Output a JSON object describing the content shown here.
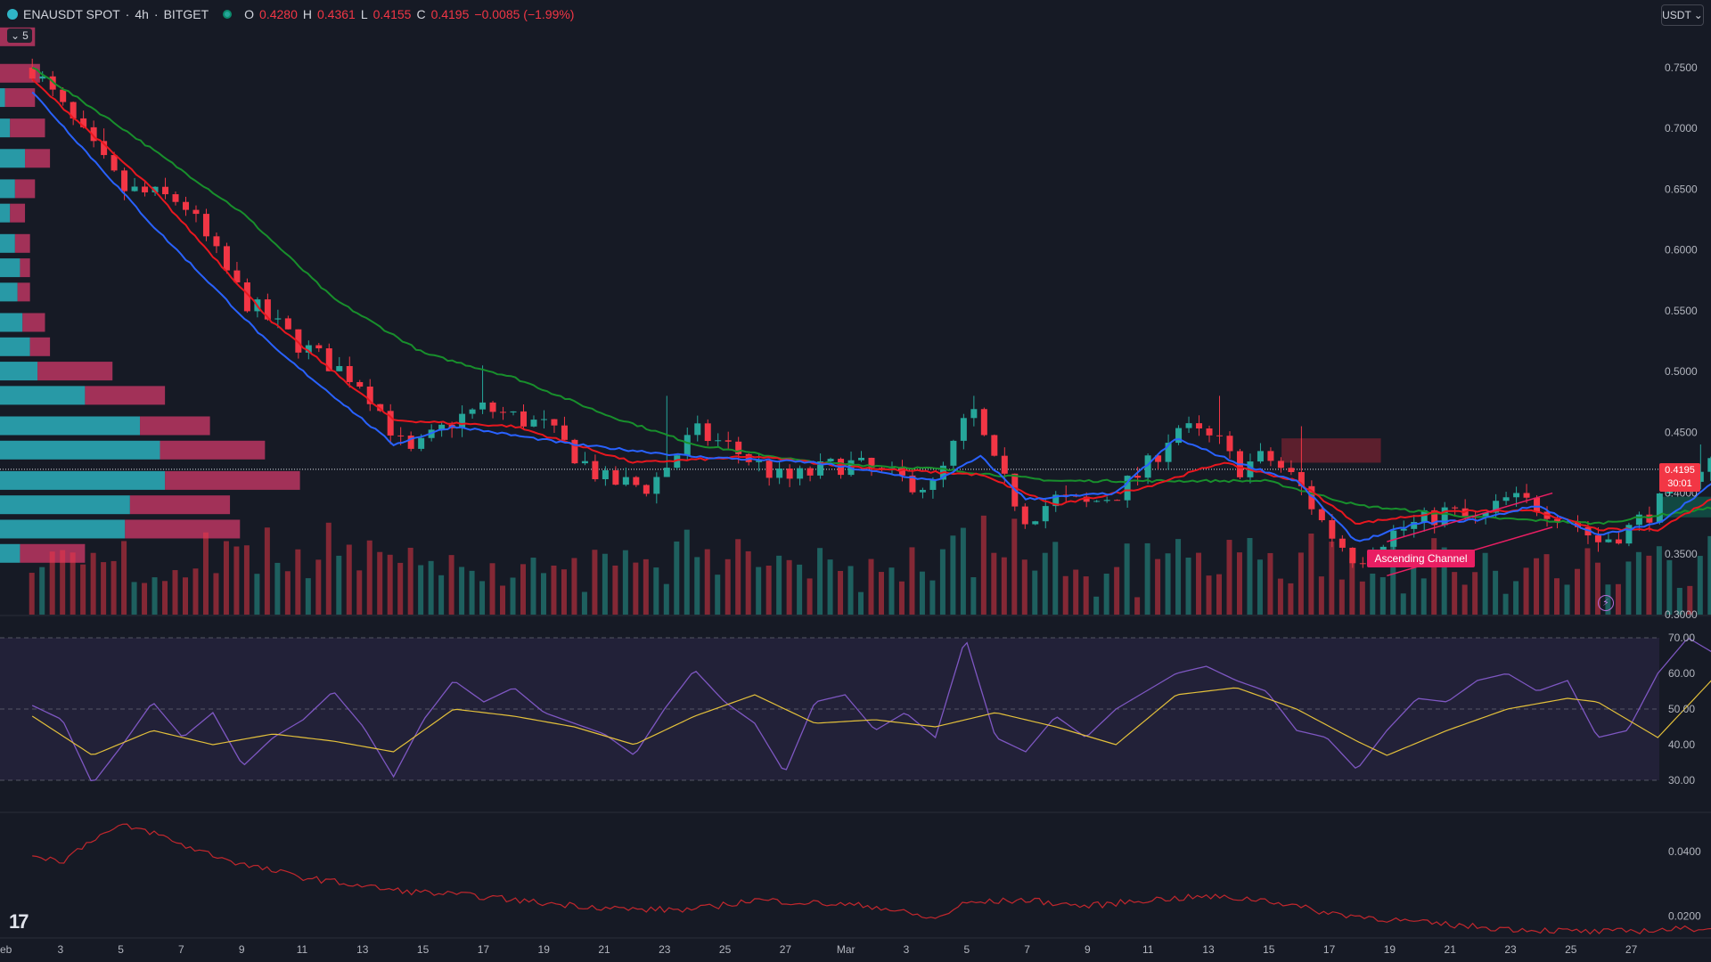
{
  "header": {
    "symbol": "ENAUSDT SPOT",
    "sep1": "·",
    "interval": "4h",
    "sep2": "·",
    "exchange": "BITGET",
    "open_key": "O",
    "open": "0.4280",
    "high_key": "H",
    "high": "0.4361",
    "low_key": "L",
    "low": "0.4155",
    "close_key": "C",
    "close": "0.4195",
    "change": "−0.0085 (−1.99%)"
  },
  "indicators_toggle": {
    "count": "5"
  },
  "currency": {
    "label": "USDT"
  },
  "current_price": {
    "value": "0.4195",
    "countdown": "30:01"
  },
  "pattern_label": "Ascending Channel",
  "colors": {
    "background": "#161a25",
    "up": "#26a69a",
    "down": "#f23645",
    "ema_fast": "#2962ff",
    "ema_mid": "#e8171f",
    "ema_slow": "#188f2c",
    "rsi": "#7e57c2",
    "rsi_ma": "#e3c03b",
    "vp_up": "#2bb0bd",
    "vp_down": "#d23a6a"
  },
  "chart_data": [
    {
      "type": "candlestick",
      "panel": "price",
      "ylim": [
        0.3,
        0.78
      ],
      "price_ticks": [
        "0.7500",
        "0.7000",
        "0.6500",
        "0.6000",
        "0.5500",
        "0.5000",
        "0.4500",
        "0.4000",
        "0.3500",
        "0.3000"
      ],
      "x_ticks": [
        "eb",
        "3",
        "5",
        "7",
        "9",
        "11",
        "13",
        "15",
        "17",
        "19",
        "21",
        "23",
        "25",
        "27",
        "Mar",
        "3",
        "5",
        "7",
        "9",
        "11",
        "13",
        "15",
        "17",
        "19",
        "21",
        "23",
        "25",
        "27"
      ],
      "close_path": [
        [
          0,
          0.75
        ],
        [
          3,
          0.65
        ],
        [
          5,
          0.64
        ],
        [
          7,
          0.56
        ],
        [
          9,
          0.52
        ],
        [
          11,
          0.49
        ],
        [
          12.5,
          0.43
        ],
        [
          14,
          0.46
        ],
        [
          15,
          0.47
        ],
        [
          17,
          0.455
        ],
        [
          19,
          0.41
        ],
        [
          20.5,
          0.405
        ],
        [
          22,
          0.45
        ],
        [
          23,
          0.44
        ],
        [
          25,
          0.41
        ],
        [
          27,
          0.425
        ],
        [
          29,
          0.41
        ],
        [
          30,
          0.405
        ],
        [
          31.2,
          0.47
        ],
        [
          32,
          0.42
        ],
        [
          33,
          0.38
        ],
        [
          34,
          0.395
        ],
        [
          35,
          0.39
        ],
        [
          36,
          0.4
        ],
        [
          37,
          0.42
        ],
        [
          38,
          0.455
        ],
        [
          39.5,
          0.44
        ],
        [
          40,
          0.42
        ],
        [
          41,
          0.43
        ],
        [
          42,
          0.41
        ],
        [
          43,
          0.37
        ],
        [
          44,
          0.345
        ],
        [
          45,
          0.365
        ],
        [
          46,
          0.375
        ],
        [
          47,
          0.385
        ],
        [
          48,
          0.375
        ],
        [
          49,
          0.395
        ],
        [
          50,
          0.39
        ],
        [
          51,
          0.38
        ],
        [
          52,
          0.36
        ],
        [
          53,
          0.37
        ],
        [
          54,
          0.39
        ],
        [
          55,
          0.415
        ],
        [
          56,
          0.43
        ],
        [
          56.5,
          0.4195
        ]
      ],
      "wick_spikes": [
        [
          2.5,
          0.7
        ],
        [
          8,
          0.54
        ],
        [
          15,
          0.505
        ],
        [
          21,
          0.48
        ],
        [
          31.2,
          0.48
        ],
        [
          39.5,
          0.48
        ],
        [
          42,
          0.455
        ],
        [
          55.5,
          0.44
        ]
      ],
      "ema_fast": [
        [
          0,
          0.73
        ],
        [
          4,
          0.62
        ],
        [
          8,
          0.52
        ],
        [
          12,
          0.44
        ],
        [
          14,
          0.455
        ],
        [
          18,
          0.44
        ],
        [
          22,
          0.43
        ],
        [
          26,
          0.425
        ],
        [
          30,
          0.41
        ],
        [
          31.5,
          0.43
        ],
        [
          33,
          0.395
        ],
        [
          36,
          0.4
        ],
        [
          38,
          0.445
        ],
        [
          40,
          0.425
        ],
        [
          42,
          0.41
        ],
        [
          44,
          0.36
        ],
        [
          46,
          0.375
        ],
        [
          48,
          0.378
        ],
        [
          50,
          0.39
        ],
        [
          52,
          0.365
        ],
        [
          54,
          0.375
        ],
        [
          56.5,
          0.42
        ]
      ],
      "ema_mid": [
        [
          0,
          0.74
        ],
        [
          4,
          0.65
        ],
        [
          8,
          0.54
        ],
        [
          12,
          0.46
        ],
        [
          16,
          0.455
        ],
        [
          20,
          0.425
        ],
        [
          24,
          0.43
        ],
        [
          28,
          0.42
        ],
        [
          31.5,
          0.415
        ],
        [
          34,
          0.39
        ],
        [
          37,
          0.405
        ],
        [
          39.5,
          0.425
        ],
        [
          42,
          0.41
        ],
        [
          44,
          0.375
        ],
        [
          47,
          0.385
        ],
        [
          50,
          0.385
        ],
        [
          52,
          0.37
        ],
        [
          54,
          0.37
        ],
        [
          56.5,
          0.405
        ]
      ],
      "ema_slow": [
        [
          0,
          0.75
        ],
        [
          3,
          0.7
        ],
        [
          7,
          0.63
        ],
        [
          10,
          0.56
        ],
        [
          13,
          0.515
        ],
        [
          16,
          0.495
        ],
        [
          19,
          0.465
        ],
        [
          22,
          0.44
        ],
        [
          26,
          0.425
        ],
        [
          30,
          0.42
        ],
        [
          34,
          0.41
        ],
        [
          38,
          0.41
        ],
        [
          41,
          0.41
        ],
        [
          44,
          0.39
        ],
        [
          48,
          0.38
        ],
        [
          52,
          0.375
        ],
        [
          56.5,
          0.39
        ]
      ],
      "volume_profile": [
        {
          "price": 0.775,
          "up": 0.0,
          "down": 0.07
        },
        {
          "price": 0.745,
          "up": 0.0,
          "down": 0.08
        },
        {
          "price": 0.725,
          "up": 0.01,
          "down": 0.06
        },
        {
          "price": 0.7,
          "up": 0.02,
          "down": 0.07
        },
        {
          "price": 0.675,
          "up": 0.05,
          "down": 0.05
        },
        {
          "price": 0.65,
          "up": 0.03,
          "down": 0.04
        },
        {
          "price": 0.63,
          "up": 0.02,
          "down": 0.03
        },
        {
          "price": 0.605,
          "up": 0.03,
          "down": 0.03
        },
        {
          "price": 0.585,
          "up": 0.04,
          "down": 0.02
        },
        {
          "price": 0.565,
          "up": 0.035,
          "down": 0.025
        },
        {
          "price": 0.54,
          "up": 0.045,
          "down": 0.045
        },
        {
          "price": 0.52,
          "up": 0.06,
          "down": 0.04
        },
        {
          "price": 0.5,
          "up": 0.075,
          "down": 0.15
        },
        {
          "price": 0.48,
          "up": 0.17,
          "down": 0.16
        },
        {
          "price": 0.455,
          "up": 0.28,
          "down": 0.14
        },
        {
          "price": 0.435,
          "up": 0.32,
          "down": 0.21
        },
        {
          "price": 0.41,
          "up": 0.33,
          "down": 0.27
        },
        {
          "price": 0.39,
          "up": 0.26,
          "down": 0.2
        },
        {
          "price": 0.37,
          "up": 0.25,
          "down": 0.23
        },
        {
          "price": 0.35,
          "up": 0.04,
          "down": 0.13
        }
      ],
      "ascending_channel": {
        "x_start": 45,
        "x_end": 50.5,
        "lower": [
          0.332,
          0.372
        ],
        "upper": [
          0.36,
          0.4
        ]
      },
      "zones": [
        {
          "type": "supply",
          "x_start": 41.5,
          "x_end": 44.8,
          "low": 0.425,
          "high": 0.445
        },
        {
          "type": "demand",
          "x_start": 54,
          "x_end": 58,
          "low": 0.38,
          "high": 0.397
        },
        {
          "type": "demand",
          "x_start": 56.5,
          "x_end": 58,
          "low": 0.408,
          "high": 0.418
        }
      ]
    },
    {
      "type": "line",
      "panel": "rsi",
      "ylim": [
        24,
        74
      ],
      "ticks": [
        "70.00",
        "60.00",
        "50.00",
        "40.00",
        "30.00"
      ],
      "levels": [
        70,
        50,
        30
      ],
      "rsi": [
        [
          0,
          51
        ],
        [
          1,
          47
        ],
        [
          2,
          29
        ],
        [
          3,
          40
        ],
        [
          4,
          52
        ],
        [
          5,
          42
        ],
        [
          6,
          49
        ],
        [
          7,
          34
        ],
        [
          8,
          42
        ],
        [
          9,
          47
        ],
        [
          10,
          55
        ],
        [
          11,
          45
        ],
        [
          12,
          31
        ],
        [
          13,
          47
        ],
        [
          14,
          58
        ],
        [
          15,
          52
        ],
        [
          16,
          56
        ],
        [
          17,
          49
        ],
        [
          18,
          46
        ],
        [
          19,
          43
        ],
        [
          20,
          37
        ],
        [
          21,
          50
        ],
        [
          22,
          61
        ],
        [
          23,
          52
        ],
        [
          24,
          46
        ],
        [
          25,
          32
        ],
        [
          26,
          52
        ],
        [
          27,
          54
        ],
        [
          28,
          44
        ],
        [
          29,
          49
        ],
        [
          30,
          42
        ],
        [
          31,
          70
        ],
        [
          32,
          42
        ],
        [
          33,
          38
        ],
        [
          34,
          48
        ],
        [
          35,
          42
        ],
        [
          36,
          50
        ],
        [
          37,
          55
        ],
        [
          38,
          60
        ],
        [
          39,
          62
        ],
        [
          40,
          58
        ],
        [
          41,
          55
        ],
        [
          42,
          44
        ],
        [
          43,
          42
        ],
        [
          44,
          33
        ],
        [
          45,
          44
        ],
        [
          46,
          53
        ],
        [
          47,
          52
        ],
        [
          48,
          58
        ],
        [
          49,
          60
        ],
        [
          50,
          55
        ],
        [
          51,
          58
        ],
        [
          52,
          42
        ],
        [
          53,
          44
        ],
        [
          54,
          60
        ],
        [
          55,
          70
        ],
        [
          56,
          65
        ],
        [
          56.8,
          60
        ]
      ],
      "rsi_ma": [
        [
          0,
          48
        ],
        [
          2,
          37
        ],
        [
          4,
          44
        ],
        [
          6,
          40
        ],
        [
          8,
          43
        ],
        [
          10,
          41
        ],
        [
          12,
          38
        ],
        [
          14,
          50
        ],
        [
          16,
          48
        ],
        [
          18,
          45
        ],
        [
          20,
          40
        ],
        [
          22,
          48
        ],
        [
          24,
          54
        ],
        [
          26,
          46
        ],
        [
          28,
          47
        ],
        [
          30,
          45
        ],
        [
          32,
          49
        ],
        [
          34,
          45
        ],
        [
          36,
          40
        ],
        [
          37,
          47
        ],
        [
          38,
          54
        ],
        [
          40,
          56
        ],
        [
          42,
          50
        ],
        [
          44,
          41
        ],
        [
          45,
          37
        ],
        [
          47,
          44
        ],
        [
          49,
          50
        ],
        [
          51,
          53
        ],
        [
          52,
          52
        ],
        [
          54,
          42
        ],
        [
          56,
          60
        ],
        [
          56.8,
          65
        ]
      ]
    },
    {
      "type": "line",
      "panel": "oscillator",
      "ylim": [
        0.014,
        0.05
      ],
      "ticks": [
        "0.0400",
        "0.0200"
      ],
      "values": [
        [
          0,
          0.039
        ],
        [
          1,
          0.037
        ],
        [
          2,
          0.044
        ],
        [
          3,
          0.048
        ],
        [
          4,
          0.046
        ],
        [
          5,
          0.042
        ],
        [
          7,
          0.036
        ],
        [
          9,
          0.032
        ],
        [
          12,
          0.028
        ],
        [
          15,
          0.026
        ],
        [
          17,
          0.024
        ],
        [
          20,
          0.022
        ],
        [
          22,
          0.022
        ],
        [
          24,
          0.025
        ],
        [
          26,
          0.024
        ],
        [
          28,
          0.023
        ],
        [
          30,
          0.019
        ],
        [
          31,
          0.024
        ],
        [
          33,
          0.025
        ],
        [
          35,
          0.023
        ],
        [
          37,
          0.025
        ],
        [
          39,
          0.026
        ],
        [
          41,
          0.025
        ],
        [
          43,
          0.021
        ],
        [
          46,
          0.018
        ],
        [
          49,
          0.016
        ],
        [
          52,
          0.015
        ],
        [
          55,
          0.016
        ],
        [
          56.8,
          0.017
        ]
      ]
    }
  ]
}
